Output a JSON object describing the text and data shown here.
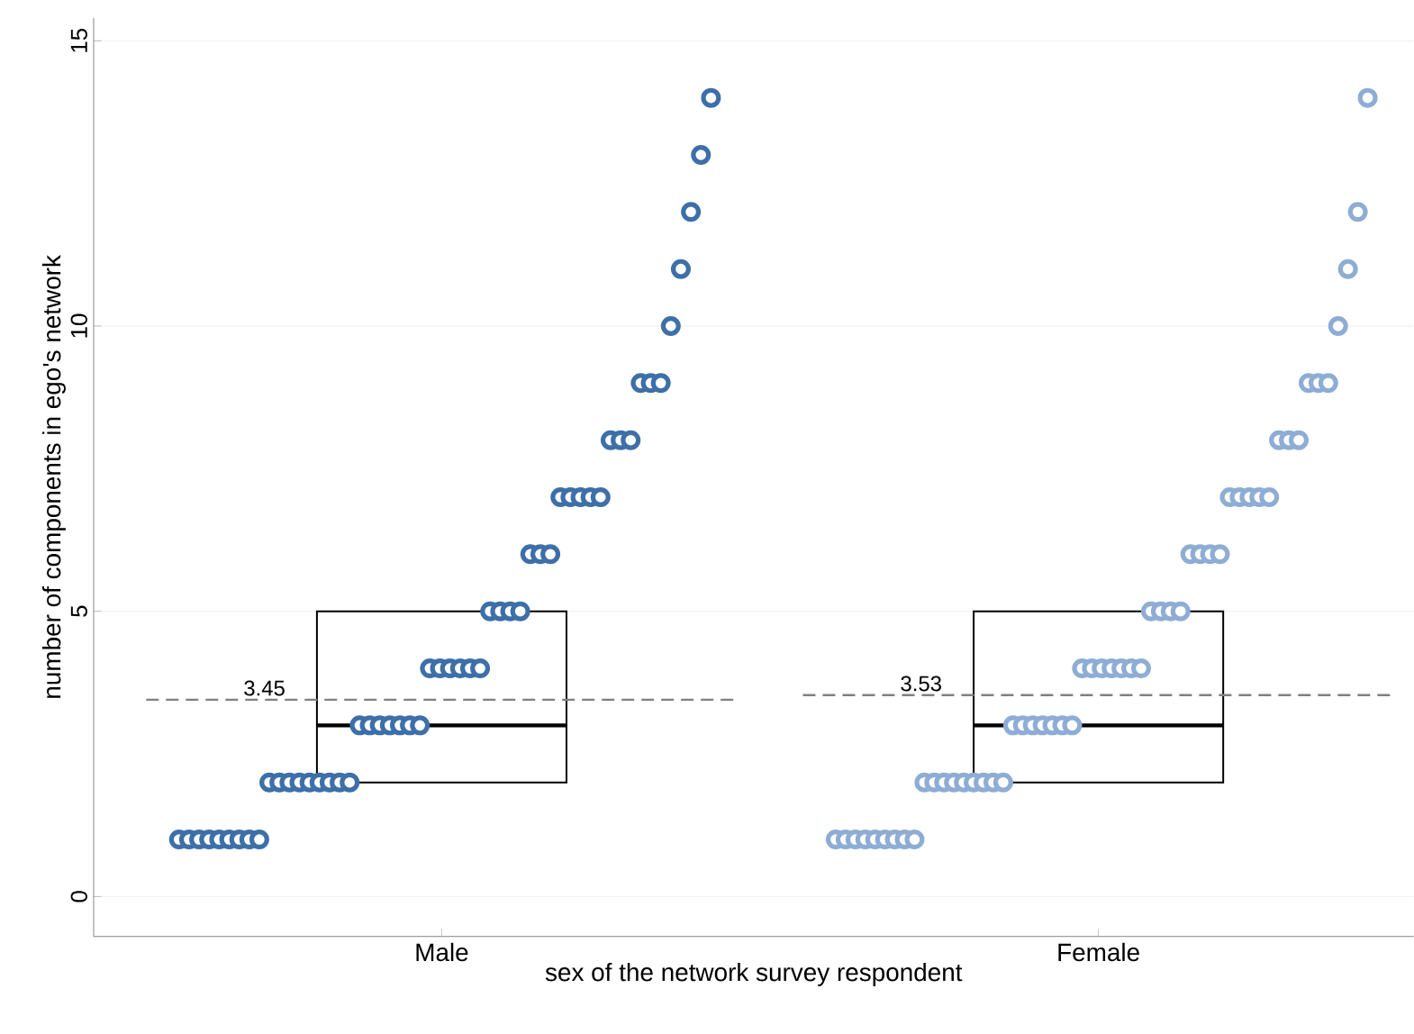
{
  "chart_data": {
    "type": "box",
    "xlabel": "sex of the network survey respondent",
    "ylabel": "number of components in ego's network",
    "categories": [
      "Male",
      "Female"
    ],
    "ylim": [
      -0.7,
      15.4
    ],
    "yticks": [
      0,
      5,
      10,
      15
    ],
    "grid": "y",
    "boxes": [
      {
        "low": 2,
        "q1": 2,
        "median": 3,
        "q3": 5,
        "high": 5
      },
      {
        "low": 2,
        "q1": 2,
        "median": 3,
        "q3": 5,
        "high": 5
      }
    ],
    "ref_lines": [
      {
        "axis": "y",
        "value": 3.45,
        "label": "3.45",
        "color": "#808080",
        "line_style": "dashed"
      },
      {
        "axis": "y",
        "value": 3.53,
        "label": "3.53",
        "color": "#808080",
        "line_style": "dashed"
      }
    ],
    "marker": "circle",
    "series": [
      {
        "type": "scatter",
        "color": "#3d6fa8",
        "x": [
          "Male",
          "Male",
          "Male",
          "Male",
          "Male",
          "Male",
          "Male",
          "Male",
          "Male",
          "Male",
          "Male",
          "Male",
          "Male",
          "Male",
          "Male",
          "Male",
          "Male",
          "Male",
          "Male",
          "Male",
          "Male",
          "Male",
          "Male",
          "Male",
          "Male",
          "Male",
          "Male",
          "Male",
          "Male",
          "Male",
          "Male",
          "Male",
          "Male",
          "Male",
          "Male",
          "Male",
          "Male",
          "Male",
          "Male",
          "Male",
          "Male",
          "Male",
          "Male",
          "Male",
          "Male",
          "Male",
          "Male",
          "Male",
          "Male",
          "Male",
          "Male",
          "Male",
          "Male",
          "Male"
        ],
        "values": [
          1,
          1,
          1,
          1,
          1,
          1,
          1,
          1,
          1,
          2,
          2,
          2,
          2,
          2,
          2,
          2,
          2,
          2,
          3,
          3,
          3,
          3,
          3,
          3,
          3,
          4,
          4,
          4,
          4,
          4,
          4,
          5,
          5,
          5,
          5,
          6,
          6,
          6,
          7,
          7,
          7,
          7,
          7,
          8,
          8,
          8,
          9,
          9,
          9,
          10,
          11,
          12,
          13,
          14
        ]
      },
      {
        "type": "scatter",
        "color": "#8eadd5",
        "x": [
          "Female",
          "Female",
          "Female",
          "Female",
          "Female",
          "Female",
          "Female",
          "Female",
          "Female",
          "Female",
          "Female",
          "Female",
          "Female",
          "Female",
          "Female",
          "Female",
          "Female",
          "Female",
          "Female",
          "Female",
          "Female",
          "Female",
          "Female",
          "Female",
          "Female",
          "Female",
          "Female",
          "Female",
          "Female",
          "Female",
          "Female",
          "Female",
          "Female",
          "Female",
          "Female",
          "Female",
          "Female",
          "Female",
          "Female",
          "Female",
          "Female",
          "Female",
          "Female",
          "Female",
          "Female",
          "Female",
          "Female",
          "Female",
          "Female",
          "Female",
          "Female",
          "Female",
          "Female",
          "Female",
          "Female"
        ],
        "values": [
          1,
          1,
          1,
          1,
          1,
          1,
          1,
          1,
          1,
          2,
          2,
          2,
          2,
          2,
          2,
          2,
          2,
          2,
          3,
          3,
          3,
          3,
          3,
          3,
          3,
          4,
          4,
          4,
          4,
          4,
          4,
          4,
          5,
          5,
          5,
          5,
          6,
          6,
          6,
          6,
          7,
          7,
          7,
          7,
          7,
          8,
          8,
          8,
          9,
          9,
          9,
          10,
          11,
          12,
          14
        ]
      }
    ]
  }
}
